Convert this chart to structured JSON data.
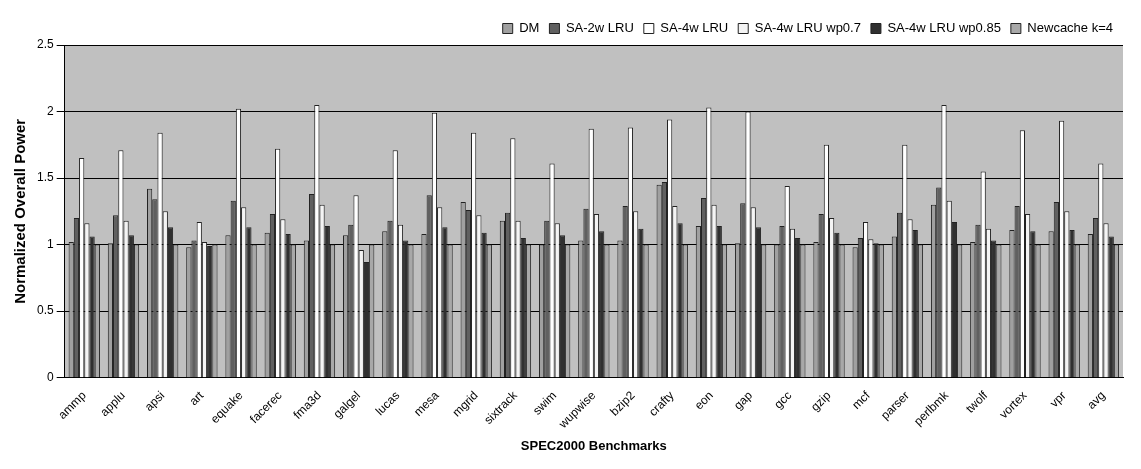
{
  "chart_data": {
    "type": "bar",
    "xlabel": "SPEC2000 Benchmarks",
    "ylabel": "Normalized Overall Power",
    "categories": [
      "ammp",
      "applu",
      "apsi",
      "art",
      "equake",
      "facerec",
      "fma3d",
      "galgel",
      "lucas",
      "mesa",
      "mgrid",
      "sixtrack",
      "swim",
      "wupwise",
      "bzip2",
      "crafty",
      "eon",
      "gap",
      "gcc",
      "gzip",
      "mcf",
      "parser",
      "perlbmk",
      "twolf",
      "vortex",
      "vpr",
      "avg"
    ],
    "series": [
      {
        "name": "DM",
        "color": "#a0a0a0",
        "values": [
          1.02,
          1.01,
          1.42,
          0.98,
          1.07,
          1.09,
          1.03,
          1.07,
          1.1,
          1.08,
          1.32,
          1.18,
          1.0,
          1.03,
          1.03,
          1.45,
          1.14,
          1.01,
          1.0,
          1.02,
          0.98,
          1.06,
          1.3,
          1.02,
          1.11,
          1.1,
          1.08
        ]
      },
      {
        "name": "SA-2w LRU",
        "color": "#606060",
        "values": [
          1.2,
          1.22,
          1.34,
          1.03,
          1.33,
          1.23,
          1.38,
          1.15,
          1.18,
          1.37,
          1.26,
          1.24,
          1.18,
          1.27,
          1.29,
          1.47,
          1.35,
          1.31,
          1.14,
          1.23,
          1.05,
          1.24,
          1.43,
          1.15,
          1.29,
          1.32,
          1.2
        ]
      },
      {
        "name": "SA-4w LRU",
        "color": "#ffffff",
        "values": [
          1.65,
          1.71,
          1.84,
          1.17,
          2.02,
          1.72,
          2.05,
          1.37,
          1.71,
          1.99,
          1.84,
          1.8,
          1.61,
          1.87,
          1.88,
          1.94,
          2.03,
          2.0,
          1.44,
          1.75,
          1.17,
          1.75,
          2.05,
          1.55,
          1.86,
          1.93,
          1.61
        ]
      },
      {
        "name": "SA-4w LRU wp0.7",
        "color": "#f4f4f4",
        "values": [
          1.16,
          1.18,
          1.25,
          1.02,
          1.28,
          1.19,
          1.3,
          0.96,
          1.15,
          1.28,
          1.22,
          1.18,
          1.16,
          1.23,
          1.25,
          1.29,
          1.3,
          1.28,
          1.12,
          1.2,
          1.04,
          1.19,
          1.33,
          1.12,
          1.23,
          1.25,
          1.16
        ]
      },
      {
        "name": "SA-4w LRU wp0.85",
        "color": "#303030",
        "values": [
          1.06,
          1.07,
          1.13,
          0.99,
          1.13,
          1.08,
          1.14,
          0.87,
          1.03,
          1.13,
          1.09,
          1.05,
          1.07,
          1.1,
          1.12,
          1.16,
          1.14,
          1.13,
          1.05,
          1.09,
          1.01,
          1.11,
          1.17,
          1.03,
          1.1,
          1.11,
          1.06
        ]
      },
      {
        "name": "Newcache k=4",
        "color": "#a8a8a8",
        "values": [
          1.0,
          1.0,
          1.0,
          1.0,
          1.0,
          1.0,
          1.0,
          1.0,
          1.0,
          1.0,
          1.0,
          1.0,
          1.0,
          1.0,
          1.0,
          1.0,
          1.0,
          1.0,
          1.0,
          1.0,
          1.0,
          1.0,
          1.0,
          1.0,
          1.0,
          1.0,
          1.0
        ]
      }
    ],
    "ylim": [
      0,
      2.5
    ],
    "yticks": [
      0,
      0.5,
      1,
      1.5,
      2,
      2.5
    ],
    "grid": "y",
    "legend": "top right"
  }
}
